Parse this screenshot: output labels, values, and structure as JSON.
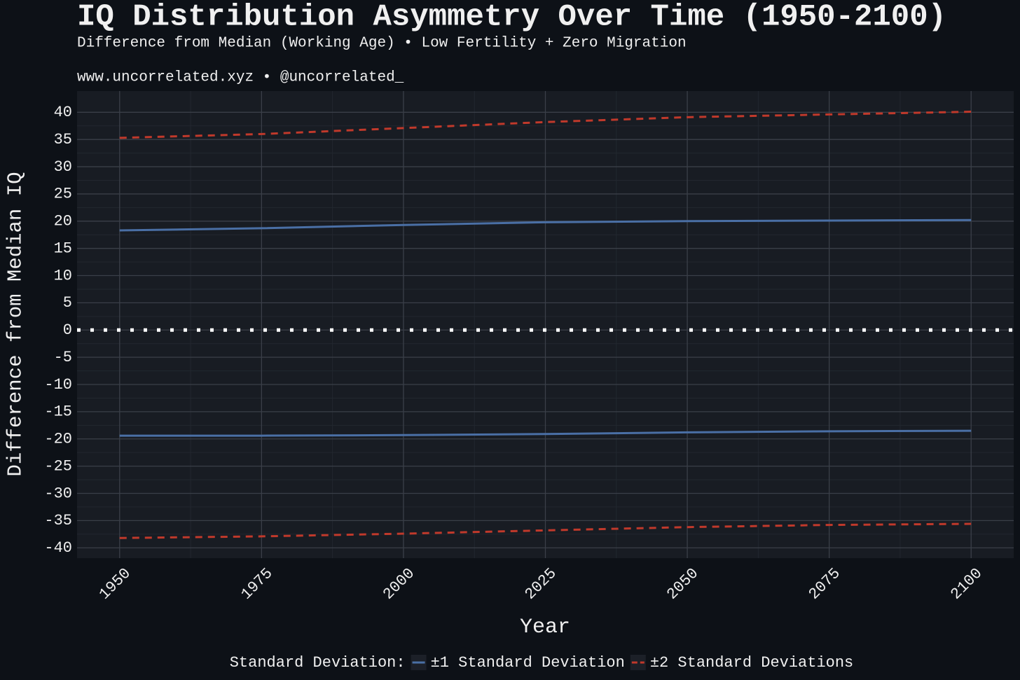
{
  "chart_data": {
    "type": "line",
    "title": "IQ Distribution Asymmetry Over Time (1950-2100)",
    "subtitle": "Difference from Median (Working Age) • Low Fertility + Zero Migration",
    "caption": "www.uncorrelated.xyz • @uncorrelated_",
    "x_label": "Year",
    "y_label": "Difference from Median IQ",
    "legend_title": "Standard Deviation:",
    "legend_position": "bottom",
    "x": [
      1950,
      1975,
      2000,
      2025,
      2050,
      2075,
      2100
    ],
    "series": [
      {
        "name": "±1 Standard Deviation",
        "color": "#4a6fa5",
        "dash": "solid",
        "upper": [
          18.3,
          18.7,
          19.3,
          19.8,
          20.0,
          20.1,
          20.2
        ],
        "lower": [
          -19.4,
          -19.4,
          -19.3,
          -19.1,
          -18.8,
          -18.6,
          -18.5
        ]
      },
      {
        "name": "±2 Standard Deviations",
        "color": "#c0392b",
        "dash": "dashed",
        "upper": [
          35.3,
          36.0,
          37.1,
          38.2,
          39.1,
          39.6,
          40.1
        ],
        "lower": [
          -38.2,
          -37.9,
          -37.4,
          -36.8,
          -36.2,
          -35.8,
          -35.6
        ]
      }
    ],
    "reference_line": 0,
    "xlim": [
      1942.5,
      2107.5
    ],
    "ylim": [
      -41.9,
      43.9
    ],
    "xticks": [
      1950,
      1975,
      2000,
      2025,
      2050,
      2075,
      2100
    ],
    "yticks": [
      40,
      35,
      30,
      25,
      20,
      15,
      10,
      5,
      0,
      -5,
      -10,
      -15,
      -20,
      -25,
      -30,
      -35,
      -40
    ],
    "grid": true,
    "minor_grid": true
  }
}
